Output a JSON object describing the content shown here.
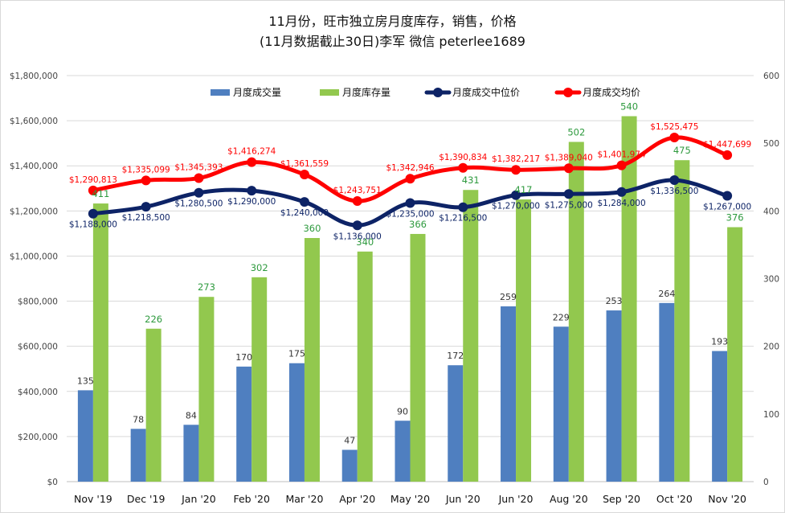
{
  "title": {
    "line1": "11月份，旺市独立房月度库存，销售，价格",
    "line2": "(11月数据截止30日)李军 微信 peterlee1689"
  },
  "colors": {
    "sales": "#4f7fc0",
    "inventory": "#92c84e",
    "median": "#0d2366",
    "average": "#ff0000",
    "grid": "#d9d9d9"
  },
  "chart_data": {
    "type": "bar",
    "categories": [
      "Nov '19",
      "Dec '19",
      "Jan '20",
      "Feb '20",
      "Mar '20",
      "Apr '20",
      "May '20",
      "Jun '20",
      "Jun '20",
      "Aug '20",
      "Sep '20",
      "Oct '20",
      "Nov '20"
    ],
    "left_axis": {
      "ylim": [
        0,
        1800000
      ],
      "ticks": [
        "$0",
        "$200,000",
        "$400,000",
        "$600,000",
        "$800,000",
        "$1,000,000",
        "$1,200,000",
        "$1,400,000",
        "$1,600,000",
        "$1,800,000"
      ]
    },
    "right_axis": {
      "ylim": [
        0,
        600
      ],
      "ticks": [
        "0",
        "100",
        "200",
        "300",
        "400",
        "500",
        "600"
      ]
    },
    "legend_position": "top",
    "grid": true,
    "series": [
      {
        "name": "月度成交量",
        "type": "bar",
        "axis": "right",
        "values": [
          135,
          78,
          84,
          170,
          175,
          47,
          90,
          172,
          259,
          229,
          253,
          264,
          193
        ],
        "labels": [
          "135",
          "78",
          "84",
          "170",
          "175",
          "47",
          "90",
          "172",
          "259",
          "229",
          "253",
          "264",
          "193"
        ]
      },
      {
        "name": "月度库存量",
        "type": "bar",
        "axis": "right",
        "values": [
          411,
          226,
          273,
          302,
          360,
          340,
          366,
          431,
          417,
          502,
          540,
          475,
          376
        ],
        "labels": [
          "411",
          "226",
          "273",
          "302",
          "360",
          "340",
          "366",
          "431",
          "417",
          "502",
          "540",
          "475",
          "376"
        ]
      },
      {
        "name": "月度成交中位价",
        "type": "line",
        "axis": "left",
        "values": [
          1188000,
          1218500,
          1280500,
          1290000,
          1240000,
          1136000,
          1235000,
          1216500,
          1270000,
          1275000,
          1284000,
          1336500,
          1267000
        ],
        "labels": [
          "$1,188,000",
          "$1,218,500",
          "$1,280,500",
          "$1,290,000",
          "$1,240,000",
          "$1,136,000",
          "$1,235,000",
          "$1,216,500",
          "$1,270,000",
          "$1,275,000",
          "$1,284,000",
          "$1,336,500",
          "$1,267,000"
        ]
      },
      {
        "name": "月度成交均价",
        "type": "line",
        "axis": "left",
        "values": [
          1290813,
          1335099,
          1345393,
          1416274,
          1361559,
          1243751,
          1342946,
          1390834,
          1382217,
          1389040,
          1401974,
          1525475,
          1447699
        ],
        "labels": [
          "$1,290,813",
          "$1,335,099",
          "$1,345,393",
          "$1,416,274",
          "$1,361,559",
          "$1,243,751",
          "$1,342,946",
          "$1,390,834",
          "$1,382,217",
          "$1,389,040",
          "$1,401,974",
          "$1,525,475",
          "$1,447,699"
        ]
      }
    ]
  }
}
